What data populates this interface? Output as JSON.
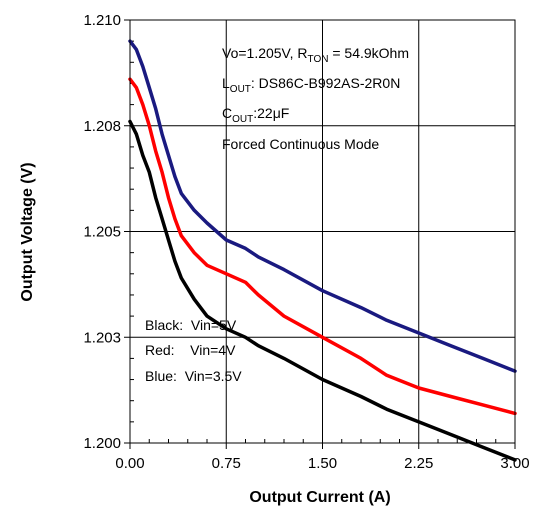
{
  "chart_data": {
    "type": "line",
    "xlabel": "Output Current (A)",
    "ylabel": "Output Voltage (V)",
    "xlim": [
      0,
      3
    ],
    "ylim": [
      1.2,
      1.21
    ],
    "x_ticks": [
      "0.00",
      "0.75",
      "1.50",
      "2.25",
      "3.00"
    ],
    "y_ticks": [
      "1.200",
      "1.203",
      "1.205",
      "1.208",
      "1.210"
    ],
    "grid": true,
    "annotations": {
      "line1": {
        "main": "Vo=1.205V, R",
        "sub": "TON",
        "tail": " = 54.9kOhm"
      },
      "line2": {
        "main": "L",
        "sub": "OUT",
        "tail": ": DS86C-B992AS-2R0N"
      },
      "line3": {
        "main": "C",
        "sub": "OUT",
        "tail": ":22μF"
      },
      "line4": "Forced Continuous Mode"
    },
    "legend": [
      "Black:  Vin=5V",
      "Red:    Vin=4V",
      "Blue:  Vin=3.5V"
    ],
    "legend_placement": "bottom-left",
    "series": [
      {
        "color": "#1a1a80",
        "x": [
          0.0,
          0.05,
          0.1,
          0.15,
          0.2,
          0.25,
          0.3,
          0.35,
          0.4,
          0.5,
          0.6,
          0.75,
          0.9,
          1.0,
          1.2,
          1.5,
          1.8,
          2.0,
          2.25,
          2.5,
          2.75,
          3.0
        ],
        "values": [
          1.2095,
          1.2093,
          1.2089,
          1.2084,
          1.2079,
          1.2073,
          1.2068,
          1.2063,
          1.2059,
          1.2055,
          1.2052,
          1.2048,
          1.2046,
          1.2044,
          1.2041,
          1.2036,
          1.2032,
          1.2029,
          1.2026,
          1.2023,
          1.202,
          1.2017
        ]
      },
      {
        "color": "#ff0000",
        "x": [
          0.0,
          0.05,
          0.1,
          0.15,
          0.2,
          0.25,
          0.3,
          0.35,
          0.4,
          0.5,
          0.6,
          0.75,
          0.9,
          1.0,
          1.2,
          1.5,
          1.8,
          2.0,
          2.25,
          2.5,
          2.75,
          3.0
        ],
        "values": [
          1.2086,
          1.2084,
          1.208,
          1.2075,
          1.2069,
          1.2064,
          1.2058,
          1.2053,
          1.2049,
          1.2045,
          1.2042,
          1.204,
          1.2038,
          1.2035,
          1.203,
          1.2025,
          1.202,
          1.2016,
          1.2013,
          1.2011,
          1.2009,
          1.2007
        ]
      },
      {
        "color": "#000000",
        "x": [
          0.0,
          0.05,
          0.1,
          0.15,
          0.2,
          0.25,
          0.3,
          0.35,
          0.4,
          0.5,
          0.6,
          0.75,
          0.9,
          1.0,
          1.2,
          1.5,
          1.8,
          2.0,
          2.25,
          2.5,
          2.75,
          3.0
        ],
        "values": [
          1.2076,
          1.2073,
          1.2068,
          1.2064,
          1.2058,
          1.2053,
          1.2048,
          1.2043,
          1.2039,
          1.2034,
          1.203,
          1.2027,
          1.2025,
          1.2023,
          1.202,
          1.2015,
          1.2011,
          1.2008,
          1.2005,
          1.2002,
          1.1999,
          1.1996
        ]
      }
    ]
  }
}
